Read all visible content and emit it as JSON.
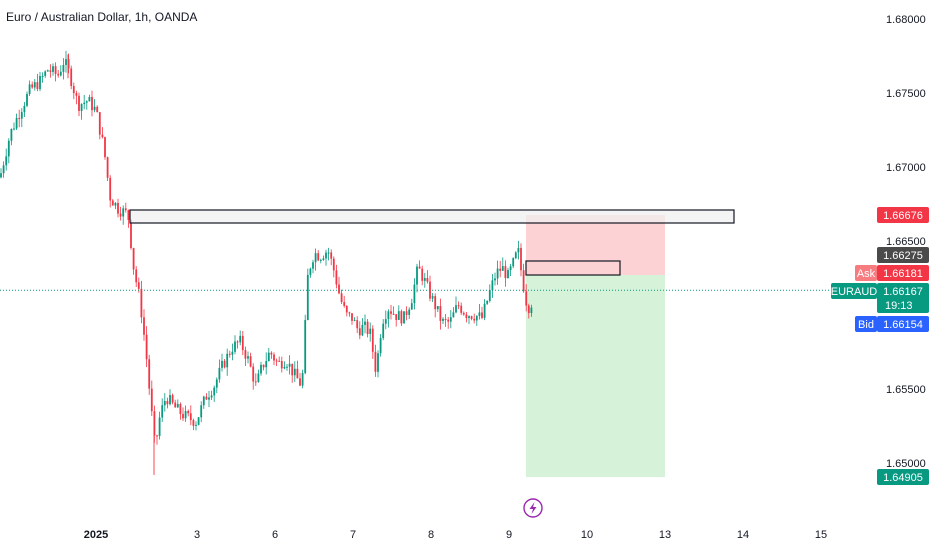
{
  "title": "Euro / Australian Dollar, 1h, OANDA",
  "colors": {
    "up": "#089981",
    "down": "#f23645",
    "stop_zone": "#fcd2d5",
    "target_zone": "#d6f2d9",
    "bid_blue": "#2962ff",
    "current_line": "#089981"
  },
  "chart_data": {
    "type": "candlestick",
    "title": "Euro / Australian Dollar, 1h, OANDA",
    "symbol": "EURAUD",
    "ylim": [
      1.6477,
      1.6828
    ],
    "yticks": [
      "1.68000",
      "1.67500",
      "1.67000",
      "1.66500",
      "1.65500",
      "1.65000"
    ],
    "xticks": [
      "2025",
      "3",
      "6",
      "7",
      "8",
      "9",
      "10",
      "13",
      "14",
      "15"
    ],
    "price_labels": {
      "stop": "1.66676",
      "entry": "1.66275",
      "ask_label": "Ask",
      "ask": "1.66181",
      "symbol_label": "EURAUD",
      "last": "1.66167",
      "countdown": "19:13",
      "bid_label": "Bid",
      "bid": "1.66154",
      "target": "1.64905"
    },
    "resistance_zone": {
      "top": 1.667,
      "bottom": 1.6661
    },
    "position": {
      "entry": 1.66275,
      "stop": 1.66676,
      "target": 1.64905
    },
    "last_price": 1.66167,
    "price_path": [
      [
        0,
        1.6693
      ],
      [
        10,
        1.6722
      ],
      [
        20,
        1.6738
      ],
      [
        30,
        1.6752
      ],
      [
        40,
        1.6758
      ],
      [
        48,
        1.6766
      ],
      [
        58,
        1.6762
      ],
      [
        64,
        1.6772
      ],
      [
        70,
        1.6762
      ],
      [
        78,
        1.6742
      ],
      [
        88,
        1.6745
      ],
      [
        96,
        1.6738
      ],
      [
        104,
        1.6712
      ],
      [
        110,
        1.668
      ],
      [
        118,
        1.6672
      ],
      [
        128,
        1.6668
      ],
      [
        134,
        1.663
      ],
      [
        140,
        1.661
      ],
      [
        146,
        1.6575
      ],
      [
        150,
        1.6545
      ],
      [
        155,
        1.651
      ],
      [
        160,
        1.6532
      ],
      [
        166,
        1.6545
      ],
      [
        174,
        1.6538
      ],
      [
        184,
        1.6532
      ],
      [
        196,
        1.6528
      ],
      [
        206,
        1.6545
      ],
      [
        214,
        1.6552
      ],
      [
        222,
        1.6565
      ],
      [
        232,
        1.6578
      ],
      [
        240,
        1.6582
      ],
      [
        248,
        1.657
      ],
      [
        256,
        1.6552
      ],
      [
        262,
        1.6565
      ],
      [
        270,
        1.6575
      ],
      [
        278,
        1.6567
      ],
      [
        286,
        1.657
      ],
      [
        294,
        1.656
      ],
      [
        302,
        1.6552
      ],
      [
        308,
        1.6628
      ],
      [
        314,
        1.6642
      ],
      [
        320,
        1.664
      ],
      [
        328,
        1.6644
      ],
      [
        334,
        1.663
      ],
      [
        340,
        1.6612
      ],
      [
        346,
        1.66
      ],
      [
        352,
        1.6598
      ],
      [
        358,
        1.659
      ],
      [
        364,
        1.6592
      ],
      [
        370,
        1.6588
      ],
      [
        376,
        1.6562
      ],
      [
        382,
        1.6596
      ],
      [
        388,
        1.6605
      ],
      [
        396,
        1.66
      ],
      [
        404,
        1.6598
      ],
      [
        412,
        1.6612
      ],
      [
        418,
        1.6632
      ],
      [
        424,
        1.6624
      ],
      [
        430,
        1.6614
      ],
      [
        436,
        1.6605
      ],
      [
        442,
        1.6595
      ],
      [
        450,
        1.6595
      ],
      [
        458,
        1.6607
      ],
      [
        466,
        1.6601
      ],
      [
        474,
        1.66
      ],
      [
        482,
        1.6598
      ],
      [
        490,
        1.6616
      ],
      [
        496,
        1.6628
      ],
      [
        502,
        1.6632
      ],
      [
        508,
        1.6626
      ],
      [
        514,
        1.6636
      ],
      [
        518,
        1.6644
      ],
      [
        522,
        1.6626
      ],
      [
        526,
        1.661
      ],
      [
        530,
        1.6604
      ],
      [
        534,
        1.66167
      ]
    ]
  }
}
